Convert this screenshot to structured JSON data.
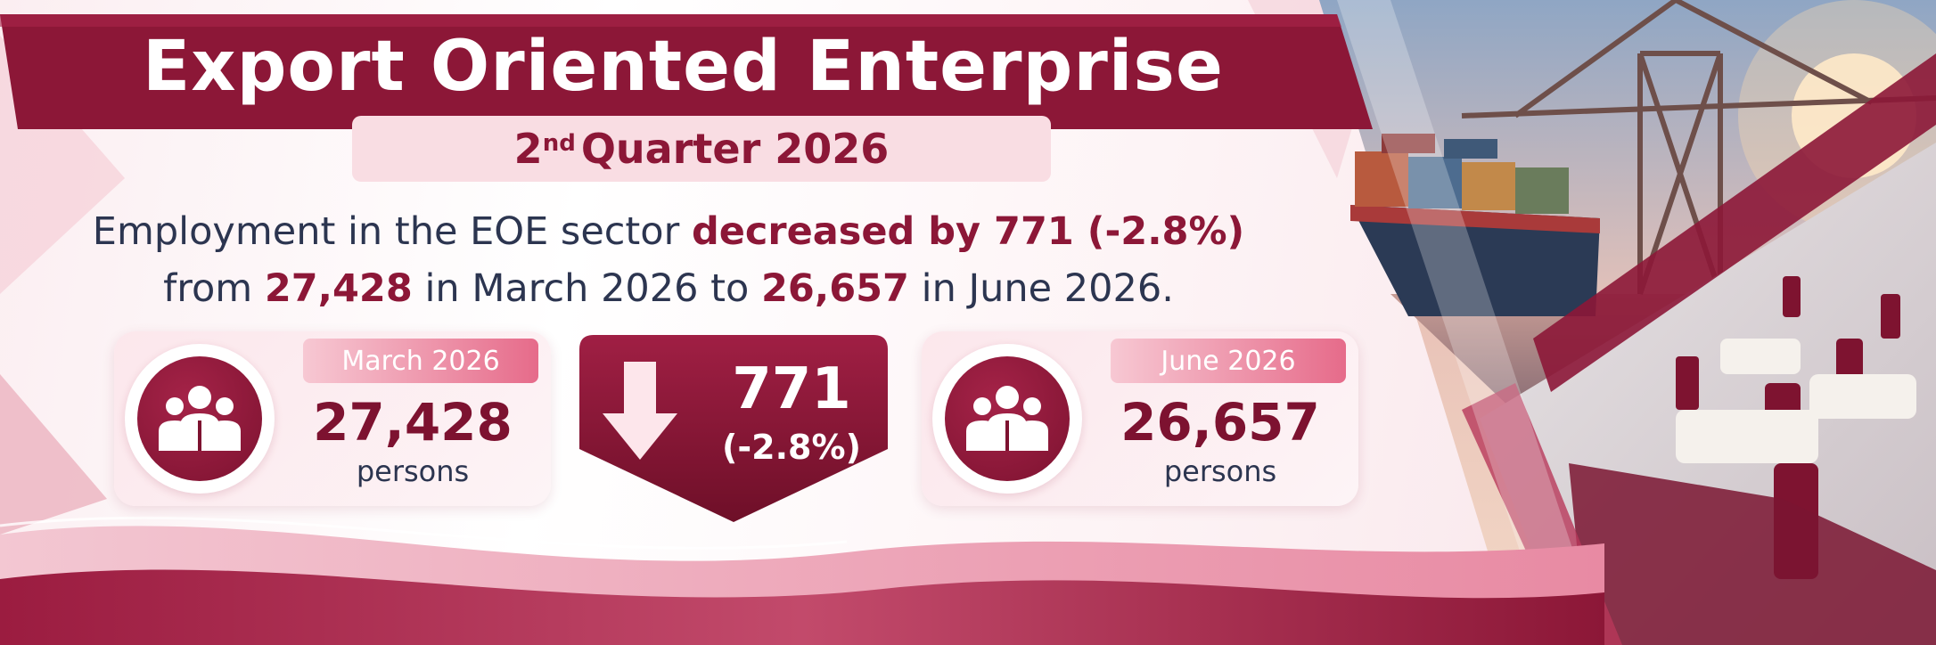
{
  "header": {
    "title": "Export Oriented Enterprise",
    "quarter_ordinal": "2",
    "quarter_suffix": "nd",
    "quarter_rest": "Quarter 2026"
  },
  "summary": {
    "part1": "Employment in the EOE sector ",
    "highlight1": "decreased by 771 (-2.8%)",
    "part2": "from ",
    "highlight2": "27,428",
    "part3": " in March 2026 to ",
    "highlight3": "26,657",
    "part4": " in June 2026."
  },
  "cards": {
    "start": {
      "month": "March 2026",
      "count": "27,428",
      "unit": "persons",
      "icon": "people-group-icon"
    },
    "end": {
      "month": "June 2026",
      "count": "26,657",
      "unit": "persons",
      "icon": "people-group-icon"
    }
  },
  "change": {
    "value": "771",
    "percent": "(-2.8%)",
    "icon": "down-arrow-icon"
  },
  "colors": {
    "brand": "#8c1737",
    "brand_dark": "#7d1230",
    "accent_pink": "#e66b8a",
    "text_navy": "#2c3550"
  }
}
